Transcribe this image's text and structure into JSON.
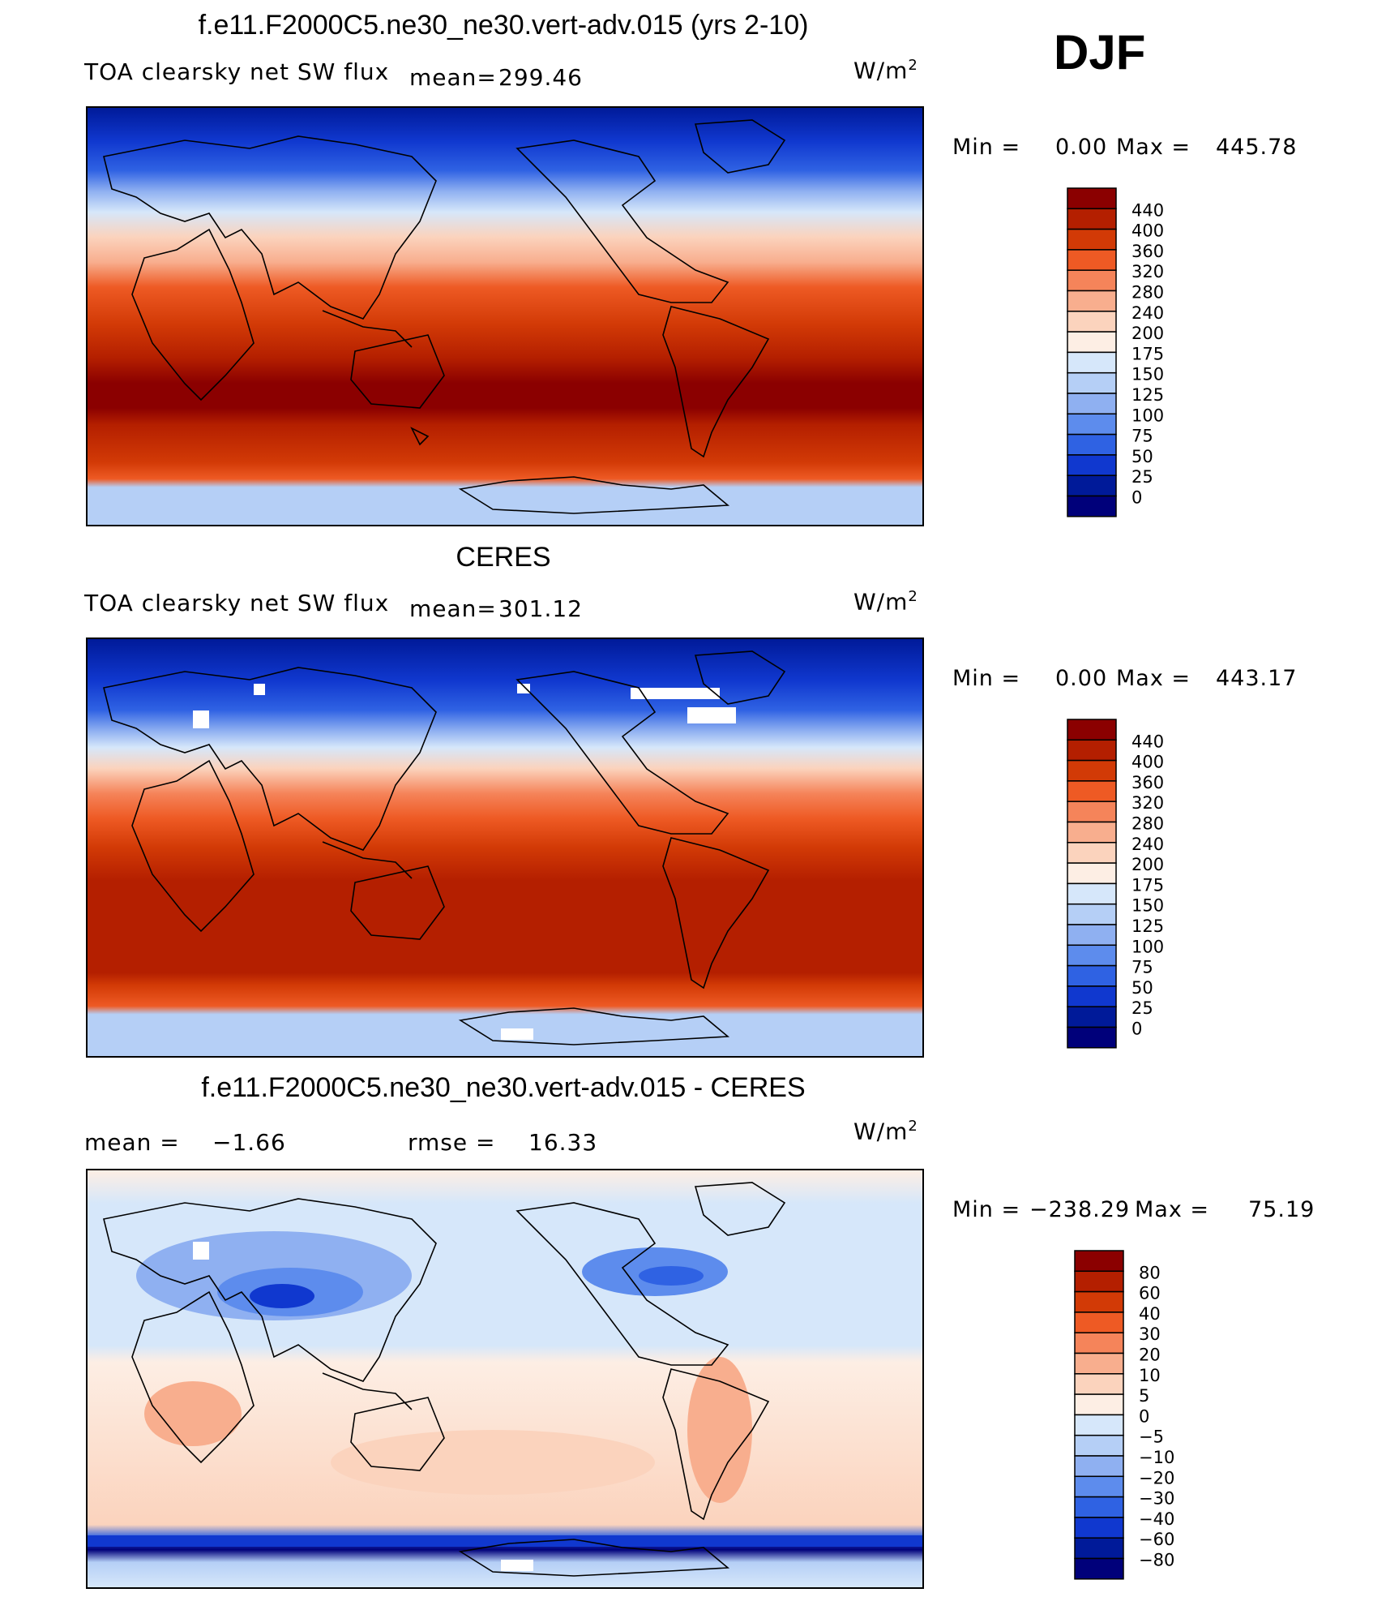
{
  "season": "DJF",
  "units": "W/m",
  "units_sup": "2",
  "panels": [
    {
      "title": "f.e11.F2000C5.ne30_ne30.vert-adv.015 (yrs 2-10)",
      "variable": "TOA clearsky net SW flux",
      "mean_label": "mean=",
      "mean_value": "299.46",
      "min_label": "Min =",
      "min_value": "0.00",
      "max_label": "Max =",
      "max_value": "445.78",
      "colorbar": {
        "labels": [
          "440",
          "400",
          "360",
          "320",
          "280",
          "240",
          "200",
          "175",
          "150",
          "125",
          "100",
          "75",
          "50",
          "25",
          "0"
        ],
        "colors": [
          "#8b0000",
          "#b41f00",
          "#d23a06",
          "#ee5a24",
          "#f5845a",
          "#f8ae8e",
          "#fbd3bd",
          "#fdeee4",
          "#d6e7fa",
          "#b5cff6",
          "#8fb0f1",
          "#5d8ced",
          "#2f62e3",
          "#1038cf",
          "#001a99",
          "#00007a"
        ]
      },
      "chart_data": {
        "type": "heatmap",
        "title": "f.e11.F2000C5.ne30_ne30.vert-adv.015 (yrs 2-10)",
        "variable": "TOA clearsky net SW flux",
        "season": "DJF",
        "mean": 299.46,
        "min": 0.0,
        "max": 445.78,
        "units": "W/m2",
        "levels": [
          0,
          25,
          50,
          75,
          100,
          125,
          150,
          175,
          200,
          240,
          280,
          320,
          360,
          400,
          440
        ]
      }
    },
    {
      "title": "CERES",
      "variable": "TOA clearsky net SW flux",
      "mean_label": "mean=",
      "mean_value": "301.12",
      "min_label": "Min =",
      "min_value": "0.00",
      "max_label": "Max =",
      "max_value": "443.17",
      "colorbar": {
        "labels": [
          "440",
          "400",
          "360",
          "320",
          "280",
          "240",
          "200",
          "175",
          "150",
          "125",
          "100",
          "75",
          "50",
          "25",
          "0"
        ],
        "colors": [
          "#8b0000",
          "#b41f00",
          "#d23a06",
          "#ee5a24",
          "#f5845a",
          "#f8ae8e",
          "#fbd3bd",
          "#fdeee4",
          "#d6e7fa",
          "#b5cff6",
          "#8fb0f1",
          "#5d8ced",
          "#2f62e3",
          "#1038cf",
          "#001a99",
          "#00007a"
        ]
      },
      "chart_data": {
        "type": "heatmap",
        "title": "CERES",
        "variable": "TOA clearsky net SW flux",
        "season": "DJF",
        "mean": 301.12,
        "min": 0.0,
        "max": 443.17,
        "units": "W/m2",
        "levels": [
          0,
          25,
          50,
          75,
          100,
          125,
          150,
          175,
          200,
          240,
          280,
          320,
          360,
          400,
          440
        ]
      }
    },
    {
      "title": "f.e11.F2000C5.ne30_ne30.vert-adv.015 - CERES",
      "mean_label": "mean =",
      "mean_value": "−1.66",
      "rmse_label": "rmse =",
      "rmse_value": "16.33",
      "min_label": "Min =",
      "min_value": "−238.29",
      "max_label": "Max =",
      "max_value": "75.19",
      "colorbar": {
        "labels": [
          "80",
          "60",
          "40",
          "30",
          "20",
          "10",
          "5",
          "0",
          "−5",
          "−10",
          "−20",
          "−30",
          "−40",
          "−60",
          "−80"
        ],
        "colors": [
          "#8b0000",
          "#b41f00",
          "#d23a06",
          "#ee5a24",
          "#f5845a",
          "#f8ae8e",
          "#fbd3bd",
          "#fdeee4",
          "#d6e7fa",
          "#b5cff6",
          "#8fb0f1",
          "#5d8ced",
          "#2f62e3",
          "#1038cf",
          "#001a99",
          "#00007a"
        ]
      },
      "chart_data": {
        "type": "heatmap",
        "title": "f.e11.F2000C5.ne30_ne30.vert-adv.015 - CERES",
        "season": "DJF",
        "mean": -1.66,
        "rmse": 16.33,
        "min": -238.29,
        "max": 75.19,
        "units": "W/m2",
        "levels": [
          -80,
          -60,
          -40,
          -30,
          -20,
          -10,
          -5,
          0,
          5,
          10,
          20,
          30,
          40,
          60,
          80
        ]
      }
    }
  ]
}
